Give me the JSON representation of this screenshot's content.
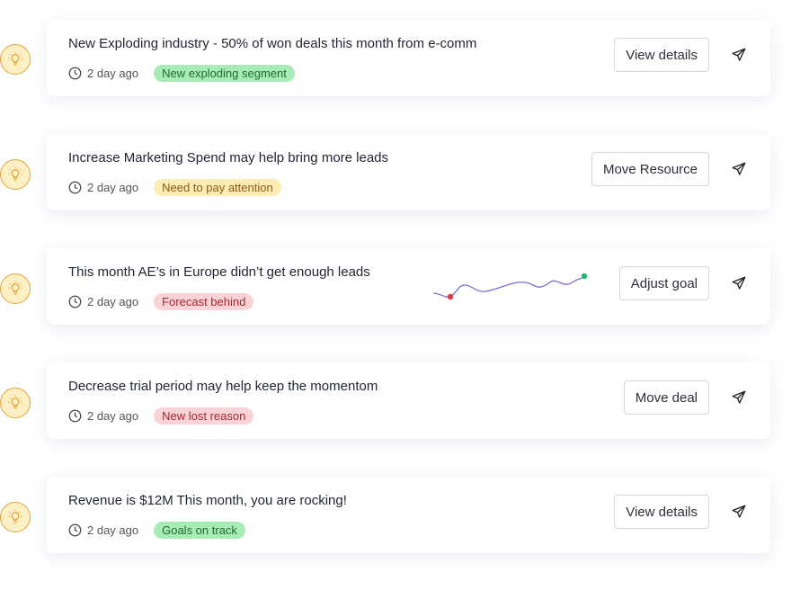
{
  "insights": [
    {
      "title": "New Exploding industry - 50% of won deals this month from e-comm",
      "time": "2 day ago",
      "badge": "New exploding segment",
      "badge_color": "#a6ecb4",
      "badge_text_color": "#1f6b35",
      "action": "View details"
    },
    {
      "title": "Increase Marketing Spend may help bring more leads",
      "time": "2 day ago",
      "badge": "Need to pay attention",
      "badge_color": "#fdedb4",
      "badge_text_color": "#8a5a10",
      "action": "Move Resource"
    },
    {
      "title": "This month AE’s in Europe didn’t get enough leads",
      "time": "2 day ago",
      "badge": "Forecast behind",
      "badge_color": "#fbd3d6",
      "badge_text_color": "#a3262f",
      "action": "Adjust goal",
      "sparkline": true
    },
    {
      "title": "Decrease trial period may help keep the momentom",
      "time": "2 day ago",
      "badge": "New lost reason",
      "badge_color": "#fbd3d6",
      "badge_text_color": "#a3262f",
      "action": "Move deal"
    },
    {
      "title": "Revenue is $12M This month, you are rocking!",
      "time": "2 day ago",
      "badge": "Goals on track",
      "badge_color": "#a6ecb4",
      "badge_text_color": "#1f6b35",
      "action": "View details"
    }
  ],
  "icons": {
    "row": "lightbulb-icon",
    "time": "clock-icon",
    "send": "send-icon"
  },
  "sparkline_colors": {
    "line": "#7b6fd6",
    "start": "#e03a44",
    "end": "#1fb67a"
  }
}
